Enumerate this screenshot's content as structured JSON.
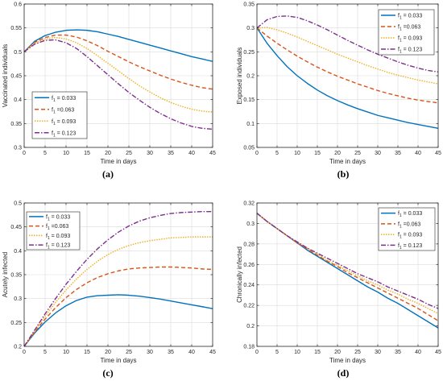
{
  "chart_data": [
    {
      "type": "line",
      "caption": "(a)",
      "xlabel": "Time in days",
      "ylabel": "Vaccinated individuals",
      "xlim": [
        0,
        45
      ],
      "ylim": [
        0.3,
        0.6
      ],
      "xticks": [
        "0",
        "5",
        "10",
        "15",
        "20",
        "25",
        "30",
        "35",
        "40",
        "45"
      ],
      "yticks": [
        "0.3",
        "0.35",
        "0.4",
        "0.45",
        "0.5",
        "0.55",
        "0.6"
      ],
      "grid": true,
      "legend_position": "bottom-left",
      "x": [
        0,
        2.5,
        5,
        7.5,
        10,
        12.5,
        15,
        17.5,
        20,
        22.5,
        25,
        27.5,
        30,
        32.5,
        35,
        37.5,
        40,
        42.5,
        45
      ],
      "series": [
        {
          "name": "f1 = 0.033",
          "label_main": "f",
          "label_sub": "1",
          "label_rest": " = 0.033",
          "color": "#0072BD",
          "dash": "none",
          "values": [
            0.5,
            0.522,
            0.534,
            0.541,
            0.545,
            0.546,
            0.545,
            0.542,
            0.537,
            0.532,
            0.526,
            0.52,
            0.514,
            0.508,
            0.502,
            0.496,
            0.49,
            0.485,
            0.48
          ]
        },
        {
          "name": "f1 =0.063",
          "label_main": "f",
          "label_sub": "1",
          "label_rest": " =0.063",
          "color": "#D95319",
          "dash": "5,3",
          "values": [
            0.5,
            0.52,
            0.53,
            0.535,
            0.535,
            0.531,
            0.523,
            0.513,
            0.501,
            0.49,
            0.479,
            0.469,
            0.46,
            0.451,
            0.443,
            0.436,
            0.43,
            0.425,
            0.422
          ]
        },
        {
          "name": "f1 = 0.093",
          "label_main": "f",
          "label_sub": "1",
          "label_rest": " = 0.093",
          "color": "#EDB120",
          "dash": "1.5,1.5",
          "values": [
            0.5,
            0.518,
            0.527,
            0.53,
            0.527,
            0.519,
            0.507,
            0.492,
            0.476,
            0.46,
            0.444,
            0.429,
            0.416,
            0.404,
            0.394,
            0.386,
            0.38,
            0.376,
            0.374
          ]
        },
        {
          "name": "f1 = 0.123",
          "label_main": "f",
          "label_sub": "1",
          "label_rest": " = 0.123",
          "color": "#7E2F8E",
          "dash": "6,2,1.5,2",
          "values": [
            0.5,
            0.516,
            0.524,
            0.525,
            0.519,
            0.507,
            0.49,
            0.471,
            0.452,
            0.433,
            0.415,
            0.399,
            0.384,
            0.371,
            0.36,
            0.351,
            0.344,
            0.34,
            0.338
          ]
        }
      ]
    },
    {
      "type": "line",
      "caption": "(b)",
      "xlabel": "Time in days",
      "ylabel": "Exposed individuals",
      "xlim": [
        0,
        45
      ],
      "ylim": [
        0.05,
        0.35
      ],
      "xticks": [
        "0",
        "5",
        "10",
        "15",
        "20",
        "25",
        "30",
        "35",
        "40",
        "45"
      ],
      "yticks": [
        "0.05",
        "0.1",
        "0.15",
        "0.2",
        "0.25",
        "0.3",
        "0.35"
      ],
      "grid": true,
      "legend_position": "top-right",
      "x": [
        0,
        2.5,
        5,
        7.5,
        10,
        12.5,
        15,
        17.5,
        20,
        22.5,
        25,
        27.5,
        30,
        32.5,
        35,
        37.5,
        40,
        42.5,
        45
      ],
      "series": [
        {
          "name": "f1 = 0.033",
          "label_main": "f",
          "label_sub": "1",
          "label_rest": " = 0.033",
          "color": "#0072BD",
          "dash": "none",
          "values": [
            0.3,
            0.268,
            0.242,
            0.219,
            0.2,
            0.184,
            0.17,
            0.158,
            0.148,
            0.139,
            0.131,
            0.124,
            0.117,
            0.112,
            0.107,
            0.102,
            0.098,
            0.094,
            0.09
          ]
        },
        {
          "name": "f1 =0.063",
          "label_main": "f",
          "label_sub": "1",
          "label_rest": " =0.063",
          "color": "#D95319",
          "dash": "5,3",
          "values": [
            0.3,
            0.283,
            0.268,
            0.254,
            0.241,
            0.229,
            0.218,
            0.208,
            0.199,
            0.191,
            0.183,
            0.176,
            0.169,
            0.163,
            0.158,
            0.153,
            0.149,
            0.146,
            0.143
          ]
        },
        {
          "name": "f1 = 0.093",
          "label_main": "f",
          "label_sub": "1",
          "label_rest": " = 0.093",
          "color": "#EDB120",
          "dash": "1.5,1.5",
          "values": [
            0.3,
            0.301,
            0.296,
            0.289,
            0.281,
            0.272,
            0.263,
            0.254,
            0.245,
            0.237,
            0.229,
            0.221,
            0.214,
            0.207,
            0.201,
            0.196,
            0.191,
            0.187,
            0.183
          ]
        },
        {
          "name": "f1 = 0.123",
          "label_main": "f",
          "label_sub": "1",
          "label_rest": " = 0.123",
          "color": "#7E2F8E",
          "dash": "6,2,1.5,2",
          "values": [
            0.3,
            0.317,
            0.324,
            0.325,
            0.322,
            0.315,
            0.306,
            0.296,
            0.285,
            0.274,
            0.264,
            0.254,
            0.245,
            0.237,
            0.229,
            0.222,
            0.216,
            0.211,
            0.208
          ]
        }
      ]
    },
    {
      "type": "line",
      "caption": "(c)",
      "xlabel": "Time in days",
      "ylabel": "Acutely infected",
      "xlim": [
        0,
        45
      ],
      "ylim": [
        0.2,
        0.5
      ],
      "xticks": [
        "0",
        "5",
        "10",
        "15",
        "20",
        "25",
        "30",
        "35",
        "40",
        "45"
      ],
      "yticks": [
        "0.2",
        "0.25",
        "0.3",
        "0.35",
        "0.4",
        "0.45",
        "0.5"
      ],
      "grid": true,
      "legend_position": "top-left",
      "x": [
        0,
        2.5,
        5,
        7.5,
        10,
        12.5,
        15,
        17.5,
        20,
        22.5,
        25,
        27.5,
        30,
        32.5,
        35,
        37.5,
        40,
        42.5,
        45
      ],
      "series": [
        {
          "name": "f1 = 0.033",
          "label_main": "f",
          "label_sub": "1",
          "label_rest": " = 0.033",
          "color": "#0072BD",
          "dash": "none",
          "values": [
            0.2,
            0.228,
            0.251,
            0.27,
            0.285,
            0.296,
            0.303,
            0.306,
            0.307,
            0.308,
            0.307,
            0.305,
            0.302,
            0.299,
            0.295,
            0.291,
            0.287,
            0.283,
            0.279
          ]
        },
        {
          "name": "f1 =0.063",
          "label_main": "f",
          "label_sub": "1",
          "label_rest": " =0.063",
          "color": "#D95319",
          "dash": "5,3",
          "values": [
            0.2,
            0.23,
            0.257,
            0.281,
            0.302,
            0.319,
            0.333,
            0.344,
            0.352,
            0.358,
            0.362,
            0.364,
            0.365,
            0.366,
            0.366,
            0.365,
            0.364,
            0.362,
            0.361
          ]
        },
        {
          "name": "f1 = 0.093",
          "label_main": "f",
          "label_sub": "1",
          "label_rest": " = 0.093",
          "color": "#EDB120",
          "dash": "1.5,1.5",
          "values": [
            0.2,
            0.232,
            0.263,
            0.292,
            0.318,
            0.341,
            0.361,
            0.378,
            0.392,
            0.403,
            0.411,
            0.417,
            0.421,
            0.424,
            0.427,
            0.428,
            0.429,
            0.429,
            0.429
          ]
        },
        {
          "name": "f1 = 0.123",
          "label_main": "f",
          "label_sub": "1",
          "label_rest": " = 0.123",
          "color": "#7E2F8E",
          "dash": "6,2,1.5,2",
          "values": [
            0.2,
            0.234,
            0.268,
            0.3,
            0.33,
            0.357,
            0.382,
            0.404,
            0.423,
            0.439,
            0.452,
            0.462,
            0.469,
            0.474,
            0.478,
            0.48,
            0.481,
            0.482,
            0.482
          ]
        }
      ]
    },
    {
      "type": "line",
      "caption": "(d)",
      "xlabel": "Time in days",
      "ylabel": "Chronically infected",
      "xlim": [
        0,
        45
      ],
      "ylim": [
        0.18,
        0.32
      ],
      "xticks": [
        "0",
        "5",
        "10",
        "15",
        "20",
        "25",
        "30",
        "35",
        "40",
        "45"
      ],
      "yticks": [
        "0.18",
        "0.2",
        "0.22",
        "0.24",
        "0.26",
        "0.28",
        "0.3",
        "0.32"
      ],
      "grid": true,
      "legend_position": "top-right",
      "x": [
        0,
        2.5,
        5,
        7.5,
        10,
        12.5,
        15,
        17.5,
        20,
        22.5,
        25,
        27.5,
        30,
        32.5,
        35,
        37.5,
        40,
        42.5,
        45
      ],
      "series": [
        {
          "name": "f1 = 0.033",
          "label_main": "f",
          "label_sub": "1",
          "label_rest": " = 0.033",
          "color": "#0072BD",
          "dash": "none",
          "values": [
            0.31,
            0.302,
            0.295,
            0.288,
            0.281,
            0.274,
            0.268,
            0.262,
            0.256,
            0.25,
            0.244,
            0.238,
            0.233,
            0.227,
            0.222,
            0.216,
            0.21,
            0.204,
            0.198
          ]
        },
        {
          "name": "f1 =0.063",
          "label_main": "f",
          "label_sub": "1",
          "label_rest": " =0.063",
          "color": "#D95319",
          "dash": "5,3",
          "values": [
            0.31,
            0.302,
            0.295,
            0.288,
            0.281,
            0.275,
            0.269,
            0.263,
            0.258,
            0.252,
            0.247,
            0.242,
            0.237,
            0.232,
            0.227,
            0.222,
            0.217,
            0.211,
            0.205
          ]
        },
        {
          "name": "f1 = 0.093",
          "label_main": "f",
          "label_sub": "1",
          "label_rest": " = 0.093",
          "color": "#EDB120",
          "dash": "1.5,1.5",
          "values": [
            0.31,
            0.302,
            0.295,
            0.288,
            0.282,
            0.276,
            0.27,
            0.264,
            0.259,
            0.254,
            0.249,
            0.244,
            0.24,
            0.235,
            0.231,
            0.226,
            0.222,
            0.217,
            0.212
          ]
        },
        {
          "name": "f1 = 0.123",
          "label_main": "f",
          "label_sub": "1",
          "label_rest": " = 0.123",
          "color": "#7E2F8E",
          "dash": "6,2,1.5,2",
          "values": [
            0.31,
            0.302,
            0.295,
            0.288,
            0.282,
            0.276,
            0.271,
            0.266,
            0.261,
            0.256,
            0.251,
            0.247,
            0.243,
            0.238,
            0.234,
            0.23,
            0.226,
            0.221,
            0.217
          ]
        }
      ]
    }
  ]
}
